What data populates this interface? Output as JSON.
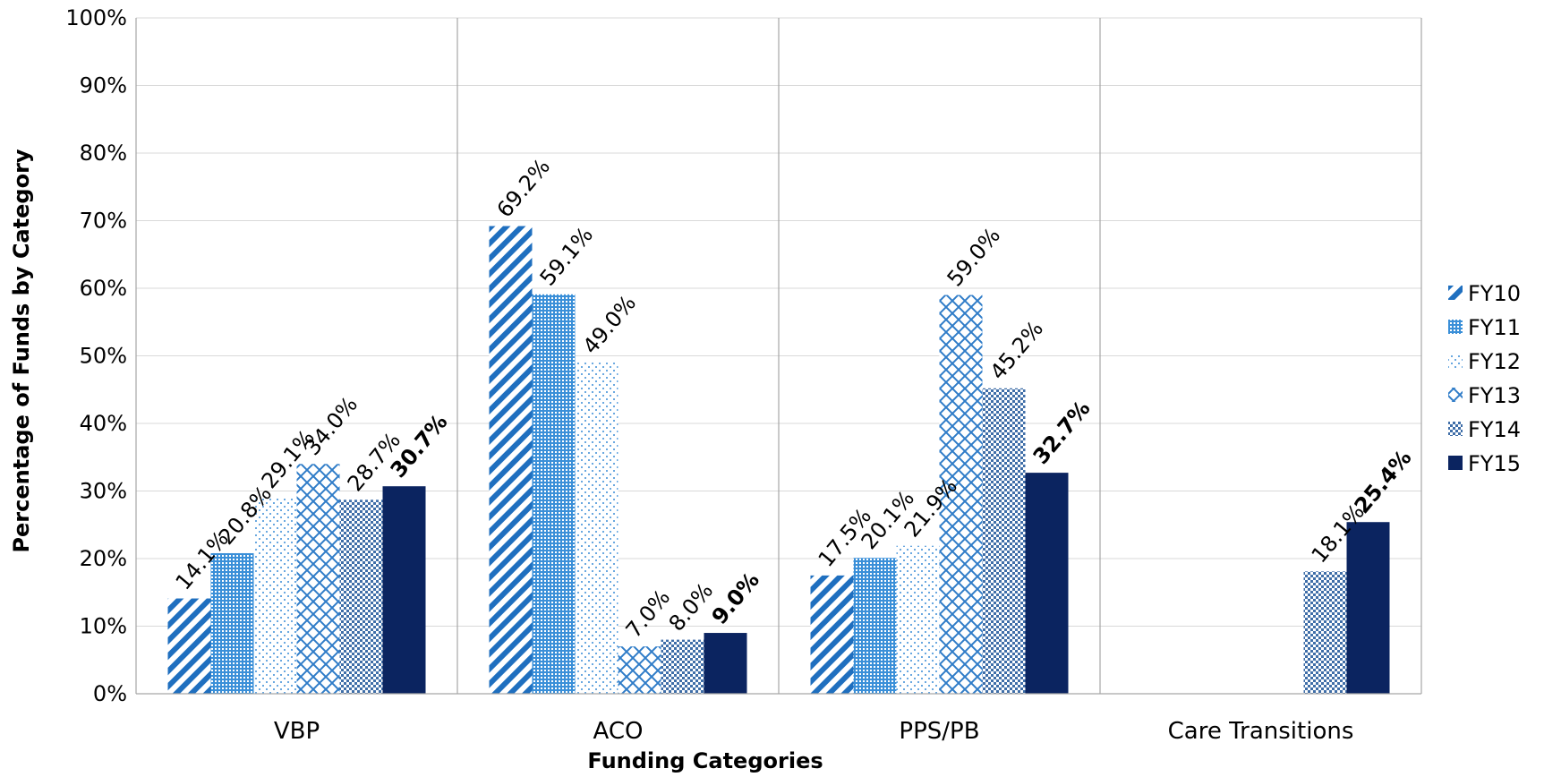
{
  "chart_data": {
    "type": "bar",
    "xlabel": "Funding Categories",
    "ylabel": "Percentage of Funds by Category",
    "ylim": [
      0,
      100
    ],
    "yticks": [
      "0%",
      "10%",
      "20%",
      "30%",
      "40%",
      "50%",
      "60%",
      "70%",
      "80%",
      "90%",
      "100%"
    ],
    "categories": [
      "VBP",
      "ACO",
      "PPS/PB",
      "Care Transitions"
    ],
    "legend_position": "right",
    "grid": true,
    "series": [
      {
        "name": "FY10",
        "color": "#1f6fbf",
        "pattern": "diagonal-stripes",
        "values": [
          14.1,
          69.2,
          17.5,
          null
        ],
        "labels": [
          "14.1%",
          "69.2%",
          "17.5%",
          ""
        ]
      },
      {
        "name": "FY11",
        "color": "#3a8fd8",
        "pattern": "dense-dots",
        "values": [
          20.8,
          59.1,
          20.1,
          null
        ],
        "labels": [
          "20.8%",
          "59.1%",
          "20.1%",
          ""
        ]
      },
      {
        "name": "FY12",
        "color": "#6aa8e0",
        "pattern": "sparse-dots",
        "values": [
          29.1,
          49.0,
          21.9,
          null
        ],
        "labels": [
          "29.1%",
          "49.0%",
          "21.9%",
          ""
        ]
      },
      {
        "name": "FY13",
        "color": "#2f7cc8",
        "pattern": "crosshatch",
        "values": [
          34.0,
          7.0,
          59.0,
          null
        ],
        "labels": [
          "34.0%",
          "7.0%",
          "59.0%",
          ""
        ]
      },
      {
        "name": "FY14",
        "color": "#3f6ea8",
        "pattern": "checker",
        "values": [
          28.7,
          8.0,
          45.2,
          18.1
        ],
        "labels": [
          "28.7%",
          "8.0%",
          "45.2%",
          "18.1%"
        ]
      },
      {
        "name": "FY15",
        "color": "#0b2460",
        "pattern": "solid",
        "bold_labels": true,
        "values": [
          30.7,
          9.0,
          32.7,
          25.4
        ],
        "labels": [
          "30.7%",
          "9.0%",
          "32.7%",
          "25.4%"
        ]
      }
    ]
  }
}
